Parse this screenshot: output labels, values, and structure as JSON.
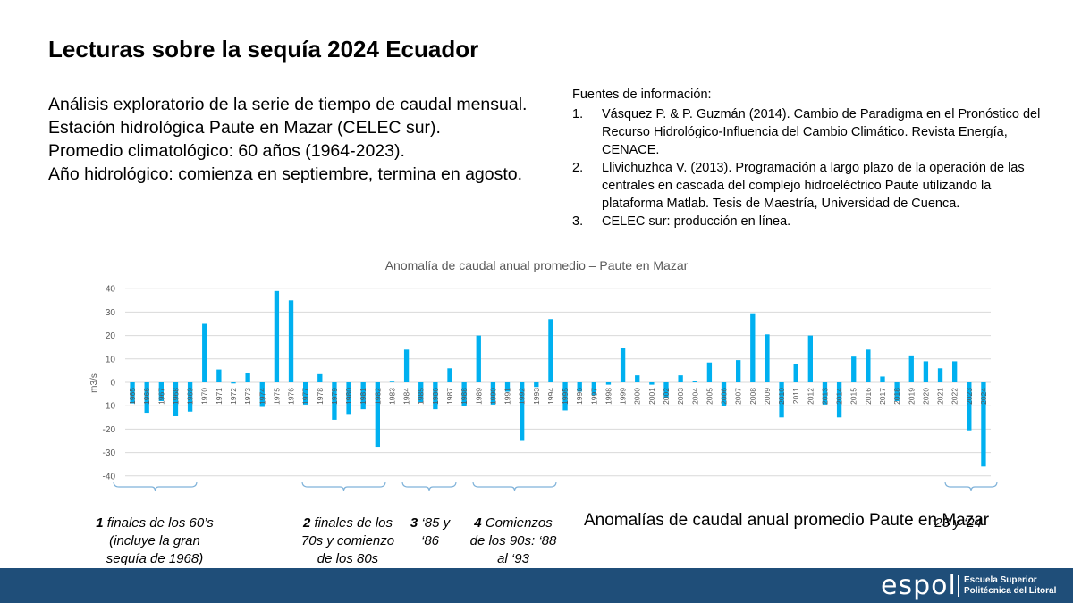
{
  "slide": {
    "title": "Lecturas sobre la sequía 2024 Ecuador",
    "intro_lines": [
      "Análisis exploratorio de la serie de tiempo de caudal mensual.",
      "Estación hidrológica Paute en Mazar (CELEC sur).",
      "Promedio climatológico: 60 años (1964-2023).",
      "Año hidrológico: comienza en septiembre, termina en agosto."
    ],
    "sources": {
      "heading": "Fuentes de información:",
      "items": [
        {
          "num": "1.",
          "text": "Vásquez P. & P. Guzmán (2014). Cambio de Paradigma en el Pronóstico del Recurso Hidrológico-Influencia del Cambio Climático. Revista Energía, CENACE."
        },
        {
          "num": "2.",
          "text": "Llivichuzhca V. (2013). Programación a largo plazo de la operación de las centrales en cascada del complejo hidroeléctrico Paute utilizando la plataforma Matlab. Tesis de Maestría, Universidad de Cuenca."
        },
        {
          "num": "3.",
          "text": "CELEC sur: producción en línea."
        }
      ]
    },
    "annotations": {
      "a1": {
        "bold": "1",
        "rest": " finales de los 60’s (incluye la gran sequía de 1968)"
      },
      "a2": {
        "bold": "2",
        "rest": " finales de los 70s y comienzo de los 80s"
      },
      "a3": {
        "bold": "3",
        "rest": " ‘85 y ‘86"
      },
      "a4": {
        "bold": "4",
        "rest": " Comienzos de los 90s: ‘88 al ‘93"
      },
      "a5": {
        "text": "‘23 y ‘24"
      }
    },
    "bottom_caption": "Anomalías de caudal anual promedio Paute en Mazar",
    "footer": {
      "logo_word": "espol",
      "logo_line1": "Escuela Superior",
      "logo_line2": "Politécnica del Litoral"
    }
  },
  "chart_data": {
    "type": "bar",
    "title": "Anomalía de caudal anual promedio – Paute en Mazar",
    "ylabel": "m3/s",
    "xlabel": "",
    "ylim": [
      -40,
      40
    ],
    "yticks": [
      40,
      30,
      20,
      10,
      0,
      -10,
      -20,
      -30,
      -40
    ],
    "grid": true,
    "bar_color": "#00b0f0",
    "categories": [
      "1965",
      "1966",
      "1967",
      "1968",
      "1969",
      "1970",
      "1971",
      "1972",
      "1973",
      "1974",
      "1975",
      "1976",
      "1977",
      "1978",
      "1979",
      "1980",
      "1981",
      "1982",
      "1983",
      "1984",
      "1985",
      "1986",
      "1987",
      "1988",
      "1989",
      "1990",
      "1991",
      "1992",
      "1993",
      "1994",
      "1995",
      "1996",
      "1997",
      "1998",
      "1999",
      "2000",
      "2001",
      "2002",
      "2003",
      "2004",
      "2005",
      "2006",
      "2007",
      "2008",
      "2009",
      "2010",
      "2011",
      "2012",
      "2013",
      "2014",
      "2015",
      "2016",
      "2017",
      "2018",
      "2019",
      "2020",
      "2021",
      "2022",
      "2023",
      "2024"
    ],
    "values": [
      -9,
      -13,
      -8,
      -14.5,
      -12.5,
      25,
      5.5,
      -0.5,
      4,
      -10.5,
      39,
      35,
      -9.5,
      3.5,
      -16,
      -13.5,
      -11.5,
      -27.5,
      0.3,
      14,
      -8.5,
      -11.5,
      6,
      -10,
      20,
      -9.5,
      -4,
      -25,
      -2,
      27,
      -12,
      -4,
      -5.5,
      -1,
      14.5,
      3,
      -1,
      -6.5,
      3,
      0.5,
      8.5,
      -10,
      9.5,
      29.5,
      20.5,
      -15,
      8,
      20,
      -9.5,
      -15,
      11,
      14,
      2.5,
      -8,
      11.5,
      9,
      6,
      9,
      -20.5,
      -36
    ]
  }
}
